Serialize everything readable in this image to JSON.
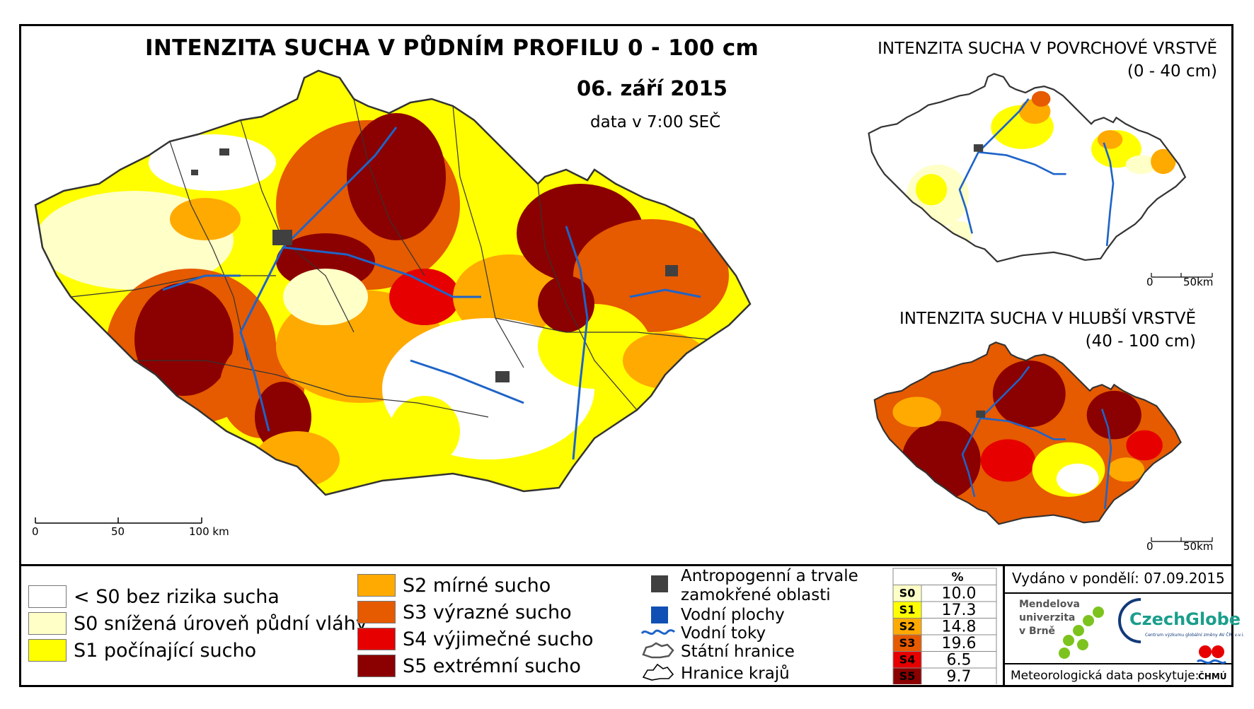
{
  "main": {
    "title": "INTENZITA SUCHA V PŮDNÍM PROFILU 0 - 100 cm",
    "date": "06. září 2015",
    "data_time": "data v 7:00 SEČ",
    "scale": {
      "ticks": [
        "0",
        "50",
        "100 km"
      ]
    }
  },
  "surface_map": {
    "title": "INTENZITA SUCHA V POVRCHOVÉ VRSTVĚ",
    "depth": "(0 - 40 cm)",
    "scale": {
      "ticks": [
        "0",
        "50km"
      ]
    }
  },
  "deep_map": {
    "title": "INTENZITA SUCHA V HLUBŠÍ VRSTVĚ",
    "depth": "(40 - 100 cm)",
    "scale": {
      "ticks": [
        "0",
        "50km"
      ]
    }
  },
  "colors": {
    "below_s0": "#ffffff",
    "s0": "#ffffc8",
    "s1": "#ffff00",
    "s2": "#ffaa00",
    "s3": "#e65a00",
    "s4": "#e60000",
    "s5": "#8b0000",
    "anthropogenic": "#404040",
    "water": "#1050b4",
    "rivers": "#1e64c8"
  },
  "legend": {
    "classes_left": [
      {
        "label": "< S0 bez rizika sucha",
        "color": "#ffffff"
      },
      {
        "label": "S0 snížená úroveň půdní vláhy",
        "color": "#ffffc8"
      },
      {
        "label": "S1 počínající sucho",
        "color": "#ffff00"
      }
    ],
    "classes_mid": [
      {
        "label": "S2 mírné sucho",
        "color": "#ffaa00"
      },
      {
        "label": "S3 výrazné sucho",
        "color": "#e65a00"
      },
      {
        "label": "S4 výjimečné sucho",
        "color": "#e60000"
      },
      {
        "label": "S5 extrémní sucho",
        "color": "#8b0000"
      }
    ],
    "features": {
      "anthropogenic_line1": "Antropogenní a trvale",
      "anthropogenic_line2": "zamokřené oblasti",
      "water_bodies": "Vodní plochy",
      "rivers": "Vodní toky",
      "state_border": "Státní hranice",
      "region_border": "Hranice krajů"
    }
  },
  "chart_data": {
    "type": "table",
    "header": "%",
    "categories": [
      "S0",
      "S1",
      "S2",
      "S3",
      "S4",
      "S5"
    ],
    "values": [
      10.0,
      17.3,
      14.8,
      19.6,
      6.5,
      9.7
    ],
    "values_text": [
      "10.0",
      "17.3",
      "14.8",
      "19.6",
      "6.5",
      "9.7"
    ],
    "row_colors": [
      "#ffffc8",
      "#ffff00",
      "#ffaa00",
      "#e65a00",
      "#e60000",
      "#8b0000"
    ]
  },
  "footer": {
    "issued": "Vydáno v pondělí: 07.09.2015",
    "mendel_line1": "Mendelova",
    "mendel_line2": "univerzita",
    "mendel_line3": "v Brně",
    "czechglobe": "CzechGlobe",
    "czechglobe_sub": "Centrum výzkumu globální změny AV ČR, v.v.i.",
    "met_data": "Meteorologická data poskytuje:",
    "chmu": "ČHMÚ"
  }
}
